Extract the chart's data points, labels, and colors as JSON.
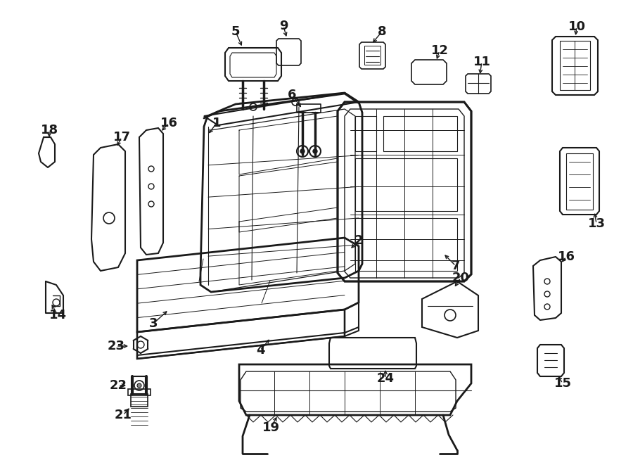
{
  "bg_color": "#ffffff",
  "line_color": "#1a1a1a",
  "fig_width": 9.0,
  "fig_height": 6.61,
  "dpi": 100,
  "part_label_fs": 13,
  "line_width": 1.3
}
